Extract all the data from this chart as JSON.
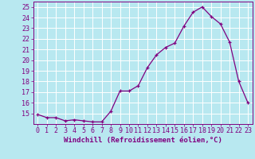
{
  "x": [
    0,
    1,
    2,
    3,
    4,
    5,
    6,
    7,
    8,
    9,
    10,
    11,
    12,
    13,
    14,
    15,
    16,
    17,
    18,
    19,
    20,
    21,
    22,
    23
  ],
  "y": [
    14.9,
    14.6,
    14.6,
    14.3,
    14.4,
    14.3,
    14.2,
    14.2,
    15.2,
    17.1,
    17.1,
    17.6,
    19.3,
    20.5,
    21.2,
    21.6,
    23.2,
    24.5,
    25.0,
    24.1,
    23.4,
    21.7,
    18.0,
    16.0
  ],
  "line_color": "#800080",
  "marker": "+",
  "bg_color": "#b8e8f0",
  "grid_color": "#ffffff",
  "xlabel": "Windchill (Refroidissement éolien,°C)",
  "xlim": [
    -0.5,
    23.5
  ],
  "ylim": [
    14,
    25.5
  ],
  "yticks": [
    15,
    16,
    17,
    18,
    19,
    20,
    21,
    22,
    23,
    24,
    25
  ],
  "xticks": [
    0,
    1,
    2,
    3,
    4,
    5,
    6,
    7,
    8,
    9,
    10,
    11,
    12,
    13,
    14,
    15,
    16,
    17,
    18,
    19,
    20,
    21,
    22,
    23
  ],
  "xlabel_fontsize": 6.5,
  "tick_fontsize": 6,
  "line_width": 0.9,
  "marker_size": 3
}
